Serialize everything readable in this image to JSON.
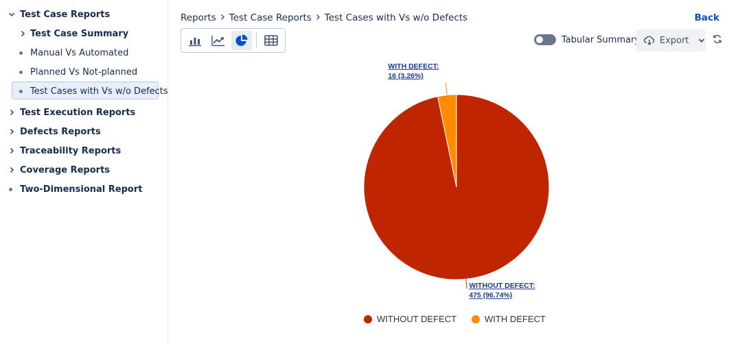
{
  "sidebar": {
    "groups": [
      {
        "label": "Test Case Reports",
        "expanded": true
      },
      {
        "label": "Test Execution Reports"
      },
      {
        "label": "Defects Reports"
      },
      {
        "label": "Traceability Reports"
      },
      {
        "label": "Coverage Reports"
      },
      {
        "label": "Two-Dimensional Report"
      }
    ],
    "children": [
      {
        "label": "Test Case Summary"
      },
      {
        "label": "Manual Vs Automated"
      },
      {
        "label": "Planned Vs Not-planned"
      },
      {
        "label": "Test Cases with Vs w/o Defects",
        "selected": true
      }
    ]
  },
  "breadcrumb": [
    "Reports",
    "Test Case Reports",
    "Test Cases with Vs w/o Defects"
  ],
  "header": {
    "back_label": "Back",
    "toggle_label": "Tabular Summary",
    "toggle_on": false,
    "export_label": "Export"
  },
  "colors": {
    "without_defect": "#bf2600",
    "with_defect": "#ff8b00",
    "accent": "#0052cc"
  },
  "chart_data": {
    "type": "pie",
    "slices": [
      {
        "name": "WITHOUT DEFECT",
        "value": 475,
        "percent": "96.74%",
        "label_title": "WITHOUT DEFECT:",
        "label_value": "475 (96.74%)",
        "color": "#bf2600"
      },
      {
        "name": "WITH DEFECT",
        "value": 16,
        "percent": "3.26%",
        "label_title": "WITH DEFECT:",
        "label_value": "16 (3.26%)",
        "color": "#ff8b00"
      }
    ],
    "legend_position": "bottom"
  }
}
